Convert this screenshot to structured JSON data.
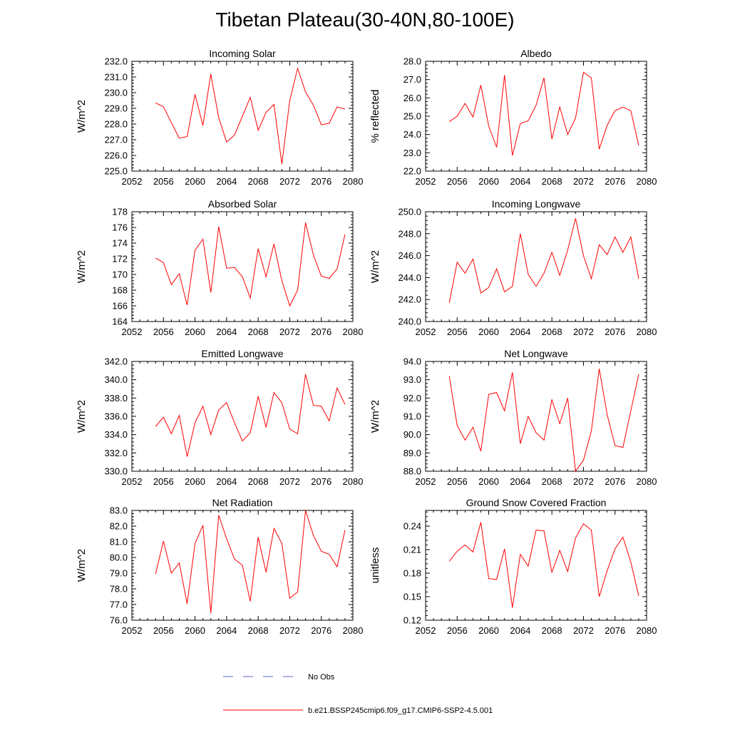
{
  "title": "Tibetan Plateau(30-40N,80-100E)",
  "legend": {
    "no_obs_label": "No Obs",
    "no_obs_color": "#5566cc",
    "model_label": "b.e21.BSSP245cmip6.f09_g17.CMIP6-SSP2-4.5.001",
    "model_color": "#ff0000"
  },
  "chart_data": [
    {
      "type": "line",
      "title": "Incoming Solar",
      "ylabel": "W/m^2",
      "xlim": [
        2052,
        2080
      ],
      "ylim": [
        225.0,
        232.0
      ],
      "xticks": [
        "2052",
        "2056",
        "2060",
        "2064",
        "2068",
        "2072",
        "2076",
        "2080"
      ],
      "yticks": [
        "225.0",
        "226.0",
        "227.0",
        "228.0",
        "229.0",
        "230.0",
        "231.0",
        "232.0"
      ],
      "x": [
        2055,
        2056,
        2057,
        2058,
        2059,
        2060,
        2061,
        2062,
        2063,
        2064,
        2065,
        2066,
        2067,
        2068,
        2069,
        2070,
        2071,
        2072,
        2073,
        2074,
        2075,
        2076,
        2077,
        2078,
        2079
      ],
      "series": [
        {
          "values": [
            229.35,
            229.1,
            228.1,
            227.1,
            227.2,
            229.9,
            227.9,
            231.2,
            228.4,
            226.85,
            227.3,
            228.5,
            229.7,
            227.6,
            228.75,
            229.25,
            225.45,
            229.5,
            231.55,
            230.05,
            229.2,
            227.95,
            228.05,
            229.1,
            228.95
          ],
          "color": "#ff0000"
        }
      ]
    },
    {
      "type": "line",
      "title": "Albedo",
      "ylabel": "% reflected",
      "xlim": [
        2052,
        2080
      ],
      "ylim": [
        22.0,
        28.0
      ],
      "xticks": [
        "2052",
        "2056",
        "2060",
        "2064",
        "2068",
        "2072",
        "2076",
        "2080"
      ],
      "yticks": [
        "22.0",
        "23.0",
        "24.0",
        "25.0",
        "26.0",
        "27.0",
        "28.0"
      ],
      "x": [
        2055,
        2056,
        2057,
        2058,
        2059,
        2060,
        2061,
        2062,
        2063,
        2064,
        2065,
        2066,
        2067,
        2068,
        2069,
        2070,
        2071,
        2072,
        2073,
        2074,
        2075,
        2076,
        2077,
        2078,
        2079
      ],
      "series": [
        {
          "values": [
            24.7,
            25.0,
            25.7,
            24.95,
            26.7,
            24.45,
            23.3,
            27.25,
            22.85,
            24.6,
            24.75,
            25.6,
            27.1,
            23.75,
            25.5,
            24.0,
            24.9,
            27.4,
            27.1,
            23.2,
            24.5,
            25.3,
            25.5,
            25.3,
            23.4
          ],
          "color": "#ff0000"
        }
      ]
    },
    {
      "type": "line",
      "title": "Absorbed Solar",
      "ylabel": "W/m^2",
      "xlim": [
        2052,
        2080
      ],
      "ylim": [
        164,
        178
      ],
      "xticks": [
        "2052",
        "2056",
        "2060",
        "2064",
        "2068",
        "2072",
        "2076",
        "2080"
      ],
      "yticks": [
        "164",
        "166",
        "168",
        "170",
        "172",
        "174",
        "176",
        "178"
      ],
      "x": [
        2055,
        2056,
        2057,
        2058,
        2059,
        2060,
        2061,
        2062,
        2063,
        2064,
        2065,
        2066,
        2067,
        2068,
        2069,
        2070,
        2071,
        2072,
        2073,
        2074,
        2075,
        2076,
        2077,
        2078,
        2079
      ],
      "series": [
        {
          "values": [
            172.1,
            171.5,
            168.7,
            170.1,
            166.1,
            173.1,
            174.5,
            167.7,
            176.1,
            170.8,
            170.9,
            169.7,
            167.0,
            173.3,
            169.7,
            173.9,
            169.2,
            166.0,
            168.0,
            176.6,
            172.5,
            169.8,
            169.5,
            170.7,
            175.1
          ],
          "color": "#ff0000"
        }
      ]
    },
    {
      "type": "line",
      "title": "Incoming Longwave",
      "ylabel": "W/m^2",
      "xlim": [
        2052,
        2080
      ],
      "ylim": [
        240.0,
        250.0
      ],
      "xticks": [
        "2052",
        "2056",
        "2060",
        "2064",
        "2068",
        "2072",
        "2076",
        "2080"
      ],
      "yticks": [
        "240.0",
        "242.0",
        "244.0",
        "246.0",
        "248.0",
        "250.0"
      ],
      "x": [
        2055,
        2056,
        2057,
        2058,
        2059,
        2060,
        2061,
        2062,
        2063,
        2064,
        2065,
        2066,
        2067,
        2068,
        2069,
        2070,
        2071,
        2072,
        2073,
        2074,
        2075,
        2076,
        2077,
        2078,
        2079
      ],
      "series": [
        {
          "values": [
            241.7,
            245.4,
            244.4,
            245.7,
            242.6,
            243.1,
            244.8,
            242.7,
            243.2,
            248.0,
            244.3,
            243.2,
            244.4,
            246.3,
            244.2,
            246.5,
            249.4,
            246.0,
            243.9,
            247.0,
            246.1,
            247.7,
            246.3,
            247.7,
            243.9
          ],
          "color": "#ff0000"
        }
      ]
    },
    {
      "type": "line",
      "title": "Emitted Longwave",
      "ylabel": "W/m^2",
      "xlim": [
        2052,
        2080
      ],
      "ylim": [
        330.0,
        342.0
      ],
      "xticks": [
        "2052",
        "2056",
        "2060",
        "2064",
        "2068",
        "2072",
        "2076",
        "2080"
      ],
      "yticks": [
        "330.0",
        "332.0",
        "334.0",
        "336.0",
        "338.0",
        "340.0",
        "342.0"
      ],
      "x": [
        2055,
        2056,
        2057,
        2058,
        2059,
        2060,
        2061,
        2062,
        2063,
        2064,
        2065,
        2066,
        2067,
        2068,
        2069,
        2070,
        2071,
        2072,
        2073,
        2074,
        2075,
        2076,
        2077,
        2078,
        2079
      ],
      "series": [
        {
          "values": [
            334.9,
            335.9,
            334.1,
            336.1,
            331.6,
            335.3,
            337.1,
            334.0,
            336.7,
            337.5,
            335.3,
            333.3,
            334.2,
            338.2,
            334.8,
            338.6,
            337.5,
            334.6,
            334.1,
            340.6,
            337.2,
            337.1,
            335.5,
            339.1,
            337.3
          ],
          "color": "#ff0000"
        }
      ]
    },
    {
      "type": "line",
      "title": "Net Longwave",
      "ylabel": "W/m^2",
      "xlim": [
        2052,
        2080
      ],
      "ylim": [
        88.0,
        94.0
      ],
      "xticks": [
        "2052",
        "2056",
        "2060",
        "2064",
        "2068",
        "2072",
        "2076",
        "2080"
      ],
      "yticks": [
        "88.0",
        "89.0",
        "90.0",
        "91.0",
        "92.0",
        "93.0",
        "94.0"
      ],
      "x": [
        2055,
        2056,
        2057,
        2058,
        2059,
        2060,
        2061,
        2062,
        2063,
        2064,
        2065,
        2066,
        2067,
        2068,
        2069,
        2070,
        2071,
        2072,
        2073,
        2074,
        2075,
        2076,
        2077,
        2078,
        2079
      ],
      "series": [
        {
          "values": [
            93.2,
            90.5,
            89.7,
            90.4,
            89.1,
            92.2,
            92.3,
            91.3,
            93.4,
            89.5,
            91.0,
            90.1,
            89.7,
            91.9,
            90.6,
            92.0,
            88.0,
            88.6,
            90.2,
            93.6,
            91.1,
            89.4,
            89.3,
            91.3,
            93.3
          ],
          "color": "#ff0000"
        }
      ]
    },
    {
      "type": "line",
      "title": "Net Radiation",
      "ylabel": "W/m^2",
      "xlim": [
        2052,
        2080
      ],
      "ylim": [
        76.0,
        83.0
      ],
      "xticks": [
        "2052",
        "2056",
        "2060",
        "2064",
        "2068",
        "2072",
        "2076",
        "2080"
      ],
      "yticks": [
        "76.0",
        "77.0",
        "78.0",
        "79.0",
        "80.0",
        "81.0",
        "82.0",
        "83.0"
      ],
      "x": [
        2055,
        2056,
        2057,
        2058,
        2059,
        2060,
        2061,
        2062,
        2063,
        2064,
        2065,
        2066,
        2067,
        2068,
        2069,
        2070,
        2071,
        2072,
        2073,
        2074,
        2075,
        2076,
        2077,
        2078,
        2079
      ],
      "series": [
        {
          "values": [
            78.95,
            81.05,
            79.0,
            79.65,
            77.05,
            80.9,
            82.05,
            76.45,
            82.7,
            81.2,
            79.9,
            79.5,
            77.2,
            81.3,
            79.05,
            81.85,
            80.9,
            77.4,
            77.8,
            83.0,
            81.4,
            80.4,
            80.2,
            79.4,
            81.75
          ],
          "color": "#ff0000"
        }
      ]
    },
    {
      "type": "line",
      "title": "Ground Snow Covered Fraction",
      "ylabel": "unitless",
      "xlim": [
        2052,
        2080
      ],
      "ylim": [
        0.12,
        0.26
      ],
      "xticks": [
        "2052",
        "2056",
        "2060",
        "2064",
        "2068",
        "2072",
        "2076",
        "2080"
      ],
      "yticks": [
        "0.12",
        "0.15",
        "0.18",
        "0.21",
        "0.24"
      ],
      "x": [
        2055,
        2056,
        2057,
        2058,
        2059,
        2060,
        2061,
        2062,
        2063,
        2064,
        2065,
        2066,
        2067,
        2068,
        2069,
        2070,
        2071,
        2072,
        2073,
        2074,
        2075,
        2076,
        2077,
        2078,
        2079
      ],
      "series": [
        {
          "values": [
            0.195,
            0.208,
            0.216,
            0.207,
            0.245,
            0.173,
            0.172,
            0.211,
            0.136,
            0.204,
            0.189,
            0.235,
            0.234,
            0.181,
            0.209,
            0.182,
            0.225,
            0.243,
            0.235,
            0.15,
            0.183,
            0.211,
            0.226,
            0.194,
            0.151
          ],
          "color": "#ff0000"
        }
      ]
    }
  ]
}
